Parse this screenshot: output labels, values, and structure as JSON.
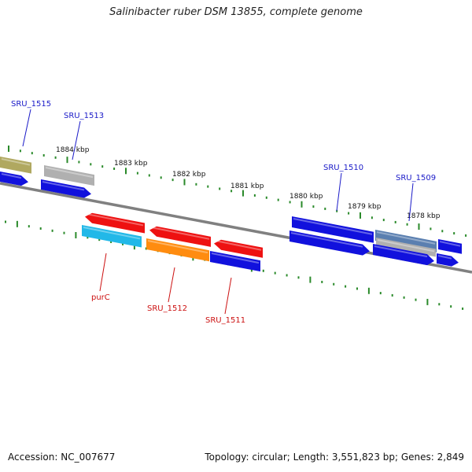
{
  "title": "Salinibacter ruber DSM 13855, complete genome",
  "footer": {
    "accession": "Accession: NC_007677",
    "topology": "Topology: circular; Length: 3,551,823 bp; Genes: 2,849"
  },
  "ruler": {
    "unit": "kbp",
    "ticks": [
      "1884 kbp",
      "1883 kbp",
      "1882 kbp",
      "1881 kbp",
      "1880 kbp",
      "1879 kbp",
      "1878 kbp"
    ]
  },
  "colors": {
    "backbone": "#808080",
    "tick": "#2a8a2a",
    "forward_label": "#1a1ac8",
    "reverse_label": "#cc1111",
    "blue_gene": "#1111dd",
    "red_gene": "#ee1111",
    "grey_gene": "#b0b0b0",
    "olive_gene": "#b0a860",
    "steel_gene": "#5a7fb0",
    "cyan_gene": "#22b8e8",
    "orange_gene": "#ff8c10"
  },
  "genes": [
    {
      "id": "olive-1515",
      "track": 1,
      "color": "olive_gene"
    },
    {
      "id": "grey-1513",
      "track": 1,
      "color": "grey_gene"
    },
    {
      "id": "blue-edge-left",
      "track": 2,
      "color": "blue_gene"
    },
    {
      "id": "blue-1513b",
      "track": 2,
      "color": "blue_gene"
    },
    {
      "id": "blue-1510",
      "track": 1,
      "color": "blue_gene"
    },
    {
      "id": "steel-1509",
      "track": 1,
      "color": "steel_gene"
    },
    {
      "id": "blue-right-a",
      "track": 1,
      "color": "blue_gene"
    },
    {
      "id": "blue-1510b",
      "track": 2,
      "color": "blue_gene"
    },
    {
      "id": "grey-1509b",
      "track": 2,
      "color": "grey_gene"
    },
    {
      "id": "blue-right-b",
      "track": 2,
      "color": "blue_gene"
    },
    {
      "id": "blue-right-c",
      "track": 2,
      "color": "blue_gene"
    },
    {
      "id": "red-purc",
      "track": 3,
      "color": "red_gene"
    },
    {
      "id": "red-1512",
      "track": 3,
      "color": "red_gene"
    },
    {
      "id": "red-1511",
      "track": 3,
      "color": "red_gene"
    },
    {
      "id": "cyan-purc",
      "track": 4,
      "color": "cyan_gene"
    },
    {
      "id": "orange-1512",
      "track": 4,
      "color": "orange_gene"
    },
    {
      "id": "blue-1511",
      "track": 4,
      "color": "blue_gene"
    }
  ],
  "labels": {
    "forward": [
      "SRU_1515",
      "SRU_1513",
      "SRU_1510",
      "SRU_1509"
    ],
    "reverse": [
      "purC",
      "SRU_1512",
      "SRU_1511"
    ]
  }
}
